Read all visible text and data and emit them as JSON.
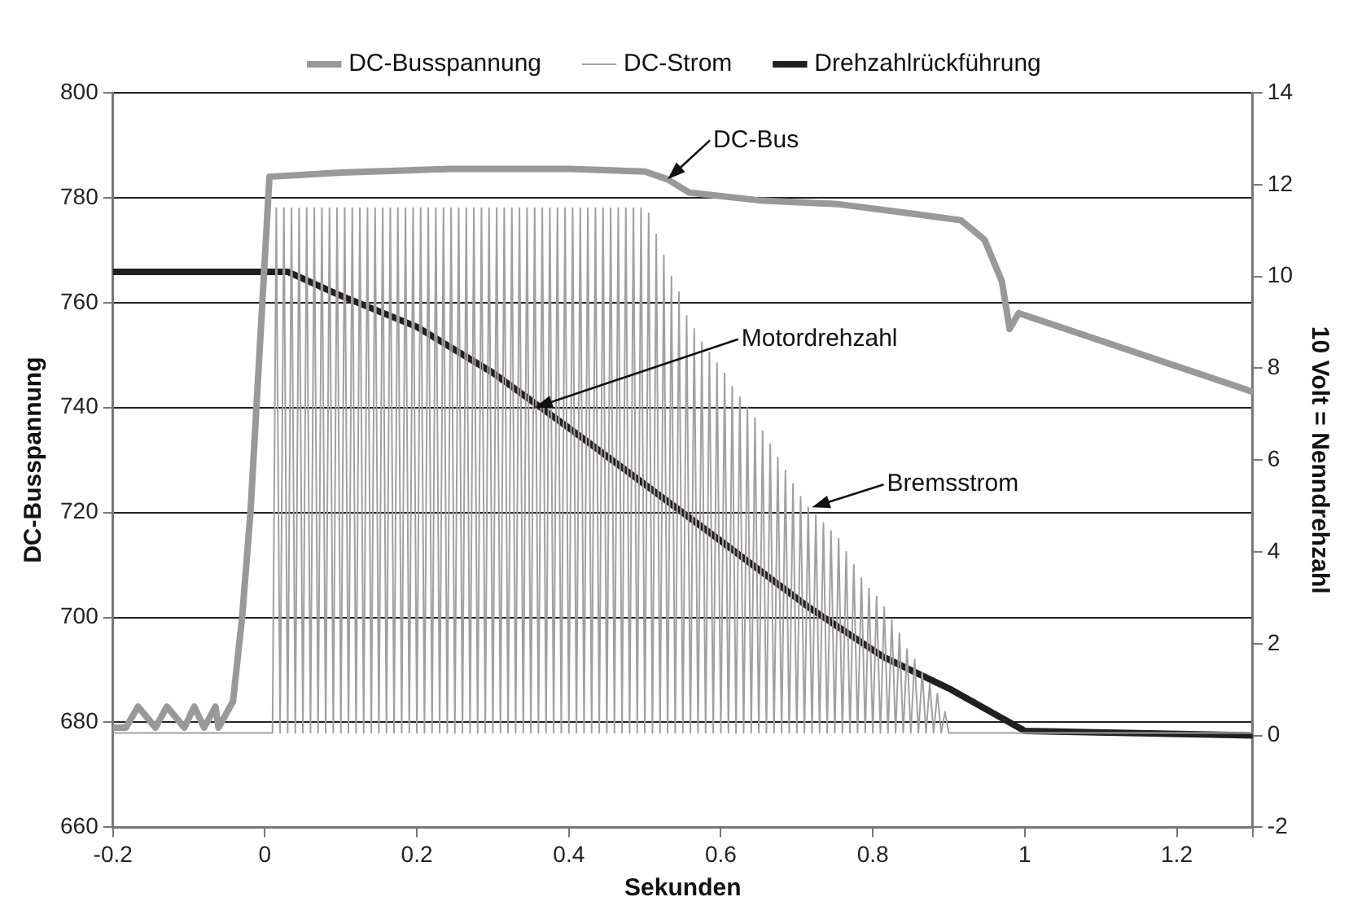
{
  "chart_data": {
    "type": "line",
    "xlabel": "Sekunden",
    "ylabel": "DC-Busspannung",
    "y2label": "10 Volt = Nenndrehzahl",
    "xlim": [
      -0.2,
      1.3
    ],
    "xticks": [
      -0.2,
      0,
      0.2,
      0.4,
      0.6,
      0.8,
      1,
      1.2,
      {
        "value": 1.3,
        "label": null
      }
    ],
    "ylim": [
      660,
      800
    ],
    "yticks": [
      660,
      680,
      700,
      720,
      740,
      760,
      780,
      800
    ],
    "y2lim": [
      -2,
      14
    ],
    "y2ticks": [
      -2,
      0,
      2,
      4,
      6,
      8,
      10,
      12,
      14
    ],
    "grid": "y",
    "legend": "top",
    "marker": "none",
    "line_style": "solid",
    "annotations": [
      {
        "text": "DC-Bus",
        "x": 0.53,
        "y": 783.5
      },
      {
        "text": "Motordrehzahl",
        "x": 0.355,
        "y": 740
      },
      {
        "text": "Bremsstrom",
        "x": 0.72,
        "y": 721
      }
    ],
    "series": [
      {
        "name": "DC-Busspannung",
        "color": "#999999",
        "x": [
          -0.2,
          -0.183,
          -0.167,
          -0.144,
          -0.129,
          -0.106,
          -0.093,
          -0.08,
          -0.065,
          -0.061,
          -0.042,
          -0.03,
          -0.019,
          0.006,
          0.1,
          0.245,
          0.4,
          0.5,
          0.53,
          0.558,
          0.65,
          0.753,
          0.85,
          0.916,
          0.947,
          0.97,
          0.98,
          0.992,
          1.3
        ],
        "values": [
          679,
          679,
          683,
          679,
          683,
          679,
          683,
          679,
          683,
          679,
          684,
          700,
          720,
          784,
          784.8,
          785.5,
          785.5,
          785,
          783.5,
          781,
          779.5,
          778.8,
          777,
          775.7,
          772,
          764,
          755,
          758,
          743
        ]
      },
      {
        "name": "DC-Strom",
        "color": "#a0a0a0",
        "x": [
          -0.2,
          0.01,
          0.015,
          0.02,
          0.025,
          0.03,
          0.035,
          0.04,
          0.045,
          0.05,
          0.055,
          0.06,
          0.065,
          0.07,
          0.075,
          0.08,
          0.085,
          0.09,
          0.095,
          0.1,
          0.105,
          0.11,
          0.115,
          0.12,
          0.125,
          0.13,
          0.135,
          0.14,
          0.145,
          0.15,
          0.155,
          0.16,
          0.165,
          0.17,
          0.175,
          0.18,
          0.185,
          0.19,
          0.195,
          0.2,
          0.205,
          0.21,
          0.215,
          0.22,
          0.225,
          0.23,
          0.235,
          0.24,
          0.245,
          0.25,
          0.255,
          0.26,
          0.265,
          0.27,
          0.275,
          0.28,
          0.285,
          0.29,
          0.295,
          0.3,
          0.305,
          0.31,
          0.315,
          0.32,
          0.325,
          0.33,
          0.335,
          0.34,
          0.345,
          0.35,
          0.355,
          0.36,
          0.365,
          0.37,
          0.375,
          0.38,
          0.385,
          0.39,
          0.395,
          0.4,
          0.405,
          0.41,
          0.415,
          0.42,
          0.425,
          0.43,
          0.435,
          0.44,
          0.445,
          0.45,
          0.455,
          0.46,
          0.465,
          0.47,
          0.475,
          0.48,
          0.485,
          0.49,
          0.495,
          0.5,
          0.505,
          0.51,
          0.515,
          0.52,
          0.525,
          0.53,
          0.535,
          0.54,
          0.545,
          0.55,
          0.555,
          0.56,
          0.565,
          0.57,
          0.575,
          0.58,
          0.585,
          0.59,
          0.595,
          0.6,
          0.605,
          0.61,
          0.615,
          0.62,
          0.625,
          0.63,
          0.635,
          0.64,
          0.645,
          0.65,
          0.655,
          0.66,
          0.665,
          0.67,
          0.675,
          0.68,
          0.685,
          0.69,
          0.695,
          0.7,
          0.705,
          0.71,
          0.715,
          0.72,
          0.725,
          0.73,
          0.735,
          0.74,
          0.745,
          0.75,
          0.755,
          0.76,
          0.765,
          0.77,
          0.775,
          0.78,
          0.785,
          0.79,
          0.795,
          0.8,
          0.805,
          0.81,
          0.815,
          0.82,
          0.825,
          0.83,
          0.835,
          0.84,
          0.845,
          0.85,
          0.855,
          0.86,
          0.865,
          0.87,
          0.875,
          0.88,
          0.885,
          0.89,
          0.895,
          0.9,
          1.3
        ],
        "values": [
          678,
          678,
          778,
          678,
          778,
          678,
          778,
          678,
          778,
          678,
          778,
          678,
          778,
          678,
          778,
          678,
          778,
          678,
          778,
          678,
          778,
          678,
          778,
          678,
          778,
          678,
          778,
          678,
          778,
          678,
          778,
          678,
          778,
          678,
          778,
          678,
          778,
          678,
          778,
          678,
          778,
          678,
          778,
          678,
          778,
          678,
          778,
          678,
          778,
          678,
          778,
          678,
          778,
          678,
          778,
          678,
          778,
          678,
          778,
          678,
          778,
          678,
          778,
          678,
          778,
          678,
          778,
          678,
          778,
          678,
          778,
          678,
          778,
          678,
          778,
          678,
          778,
          678,
          778,
          678,
          778,
          678,
          778,
          678,
          778,
          678,
          778,
          678,
          778,
          678,
          778,
          678,
          778,
          678,
          778,
          678,
          778,
          678,
          778,
          678,
          777,
          678,
          773,
          678,
          769,
          678,
          765,
          678,
          762,
          678,
          757.5,
          678,
          755,
          678,
          752.5,
          678,
          750.5,
          678,
          748.5,
          678,
          746.5,
          678,
          744,
          678,
          742,
          678,
          740,
          678,
          738,
          678,
          735.5,
          678,
          733,
          678,
          730.5,
          678,
          728,
          678,
          725.5,
          678,
          723,
          678,
          721,
          678,
          719.5,
          678,
          718,
          678,
          716.5,
          678,
          715,
          678,
          712.5,
          678,
          710,
          678,
          707.5,
          678,
          705.5,
          678,
          704,
          678,
          702,
          678,
          699.5,
          678,
          697,
          678,
          694,
          678,
          692,
          678,
          689.5,
          678,
          687.5,
          678,
          685.5,
          678,
          682,
          678,
          678
        ]
      },
      {
        "name": "Drehzahlrückführung",
        "color": "#231f20",
        "axis": "y2",
        "x": [
          -0.2,
          0.03,
          0.097,
          0.2,
          0.3,
          0.4,
          0.53,
          0.603,
          0.715,
          0.815,
          0.903,
          1.0,
          1.3
        ],
        "values": [
          10.1,
          10.1,
          9.6,
          8.9,
          7.9,
          6.7,
          5.1,
          4.2,
          2.8,
          1.7,
          1.0,
          0.1,
          0.0
        ]
      }
    ]
  }
}
